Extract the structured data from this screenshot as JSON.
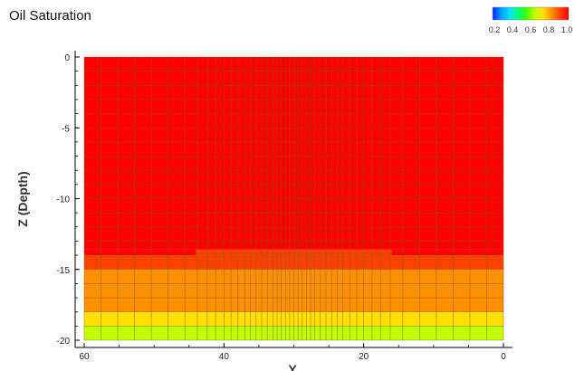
{
  "chart_data": {
    "type": "heatmap",
    "title": "Oil Saturation",
    "xlabel": "Y",
    "ylabel": "Z (Depth)",
    "xlim": [
      60,
      0
    ],
    "ylim": [
      -20,
      0
    ],
    "x_ticks": [
      "60",
      "40",
      "20",
      "0"
    ],
    "y_ticks": [
      "0",
      "-5",
      "-10",
      "-15",
      "-20"
    ],
    "colorbar": {
      "ticks": [
        "0.2",
        "0.4",
        "0.6",
        "0.8",
        "1.0"
      ],
      "colors": [
        "#1020ff",
        "#00a0ff",
        "#00e0ff",
        "#00ff80",
        "#40ff00",
        "#c0ff00",
        "#ffe000",
        "#ff9000",
        "#ff4000",
        "#ff0000"
      ]
    },
    "x_edges": [
      60,
      57.6,
      55.2,
      52.8,
      50.4,
      48,
      45.6,
      43.8,
      42.4,
      41.2,
      40,
      39,
      38,
      37,
      36.2,
      35.4,
      34.6,
      33.8,
      33,
      32.4,
      31.8,
      31.2,
      30.6,
      30,
      29.4,
      28.8,
      28.2,
      27.6,
      27,
      26.2,
      25.4,
      24.6,
      23.8,
      23,
      22,
      21,
      20,
      18.8,
      17.6,
      16.2,
      14.4,
      12,
      9.6,
      7.2,
      4.8,
      2.4,
      0
    ],
    "z_edges": [
      0,
      -1,
      -2,
      -3,
      -4,
      -5,
      -6,
      -7,
      -8,
      -9,
      -10,
      -11,
      -12,
      -13,
      -14,
      -15,
      -16,
      -17,
      -18,
      -19,
      -20
    ],
    "layers": [
      {
        "z_top": 0,
        "z_bottom": -13.6,
        "value": 0.96
      },
      {
        "z_top": -13.6,
        "z_bottom": -14,
        "value": 0.96,
        "center_value": 0.9,
        "center_x": [
          44,
          16
        ]
      },
      {
        "z_top": -14,
        "z_bottom": -15,
        "value": 0.9
      },
      {
        "z_top": -15,
        "z_bottom": -18,
        "value": 0.82
      },
      {
        "z_top": -18,
        "z_bottom": -19,
        "value": 0.7
      },
      {
        "z_top": -19,
        "z_bottom": -20,
        "value": 0.55
      }
    ]
  }
}
